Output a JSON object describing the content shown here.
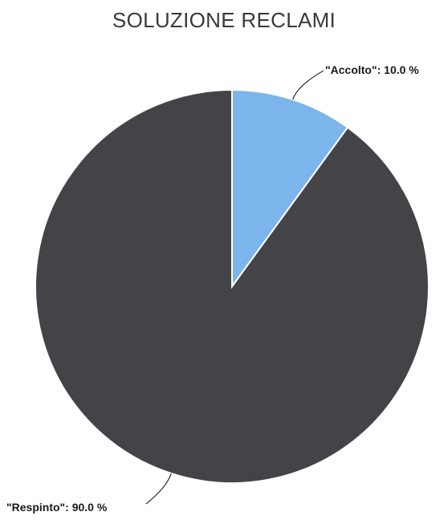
{
  "chart_data": {
    "type": "pie",
    "title": "SOLUZIONE RECLAMI",
    "categories": [
      "Accolto",
      "Respinto"
    ],
    "values": [
      10.0,
      90.0
    ],
    "labels": [
      "\"Accolto\": 10.0 %",
      "\"Respinto\": 90.0 %"
    ],
    "colors": [
      "#7cb5ec",
      "#434348"
    ],
    "legend": "none"
  }
}
